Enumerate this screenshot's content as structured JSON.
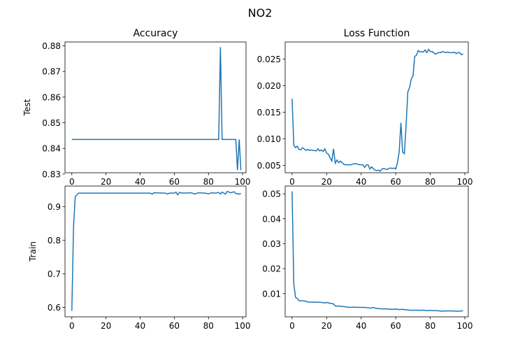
{
  "figure": {
    "suptitle": "NO2",
    "line_color": "#1f77b4",
    "column_titles": [
      "Accuracy",
      "Loss Function"
    ],
    "row_labels": [
      "Test",
      "Train"
    ]
  },
  "chart_data": [
    {
      "type": "line",
      "title": "Accuracy",
      "ylabel": "Test",
      "xlim": [
        -4,
        102
      ],
      "ylim": [
        0.8305,
        0.8815
      ],
      "xticks": [
        0,
        20,
        40,
        60,
        80,
        100
      ],
      "yticks": [
        0.83,
        0.84,
        0.85,
        0.86,
        0.87,
        0.88
      ],
      "ytick_labels": [
        "0.83",
        "0.84",
        "0.85",
        "0.86",
        "0.87",
        "0.88"
      ],
      "points": [
        [
          0,
          0.8435
        ],
        [
          86,
          0.8435
        ],
        [
          87,
          0.8795
        ],
        [
          88,
          0.8435
        ],
        [
          95,
          0.8435
        ],
        [
          96,
          0.8435
        ],
        [
          97,
          0.8315
        ],
        [
          98,
          0.8435
        ],
        [
          99,
          0.8315
        ]
      ]
    },
    {
      "type": "line",
      "title": "Loss Function",
      "ylabel": "",
      "xlim": [
        -4,
        102
      ],
      "ylim": [
        0.0036,
        0.0282
      ],
      "xticks": [
        0,
        20,
        40,
        60,
        80,
        100
      ],
      "yticks": [
        0.005,
        0.01,
        0.015,
        0.02,
        0.025
      ],
      "ytick_labels": [
        "0.005",
        "0.010",
        "0.015",
        "0.020",
        "0.025"
      ],
      "points": [
        [
          0,
          0.0175
        ],
        [
          1,
          0.0088
        ],
        [
          2,
          0.0083
        ],
        [
          3,
          0.0086
        ],
        [
          4,
          0.008
        ],
        [
          5,
          0.0079
        ],
        [
          6,
          0.0083
        ],
        [
          7,
          0.0081
        ],
        [
          8,
          0.0078
        ],
        [
          9,
          0.008
        ],
        [
          10,
          0.0078
        ],
        [
          11,
          0.0079
        ],
        [
          12,
          0.0078
        ],
        [
          13,
          0.0078
        ],
        [
          14,
          0.0077
        ],
        [
          15,
          0.0081
        ],
        [
          16,
          0.0077
        ],
        [
          17,
          0.0079
        ],
        [
          18,
          0.0076
        ],
        [
          19,
          0.0081
        ],
        [
          20,
          0.0073
        ],
        [
          21,
          0.0071
        ],
        [
          22,
          0.0064
        ],
        [
          23,
          0.0058
        ],
        [
          24,
          0.0081
        ],
        [
          25,
          0.0054
        ],
        [
          26,
          0.006
        ],
        [
          27,
          0.0055
        ],
        [
          28,
          0.0058
        ],
        [
          29,
          0.0055
        ],
        [
          30,
          0.0052
        ],
        [
          31,
          0.0051
        ],
        [
          32,
          0.0051
        ],
        [
          33,
          0.0051
        ],
        [
          34,
          0.0051
        ],
        [
          35,
          0.0052
        ],
        [
          36,
          0.0053
        ],
        [
          37,
          0.0053
        ],
        [
          38,
          0.0052
        ],
        [
          39,
          0.0051
        ],
        [
          40,
          0.0051
        ],
        [
          41,
          0.0051
        ],
        [
          42,
          0.0046
        ],
        [
          43,
          0.0051
        ],
        [
          44,
          0.0051
        ],
        [
          45,
          0.0043
        ],
        [
          46,
          0.0047
        ],
        [
          47,
          0.0044
        ],
        [
          48,
          0.0041
        ],
        [
          49,
          0.004
        ],
        [
          50,
          0.0041
        ],
        [
          51,
          0.0039
        ],
        [
          52,
          0.0043
        ],
        [
          53,
          0.0044
        ],
        [
          54,
          0.0043
        ],
        [
          55,
          0.0042
        ],
        [
          56,
          0.0044
        ],
        [
          57,
          0.0045
        ],
        [
          58,
          0.0044
        ],
        [
          59,
          0.0045
        ],
        [
          60,
          0.0043
        ],
        [
          61,
          0.0055
        ],
        [
          62,
          0.0075
        ],
        [
          63,
          0.013
        ],
        [
          64,
          0.0075
        ],
        [
          65,
          0.0072
        ],
        [
          66,
          0.0125
        ],
        [
          67,
          0.0188
        ],
        [
          68,
          0.0196
        ],
        [
          69,
          0.0212
        ],
        [
          70,
          0.0218
        ],
        [
          71,
          0.0255
        ],
        [
          72,
          0.0257
        ],
        [
          73,
          0.0266
        ],
        [
          74,
          0.0263
        ],
        [
          75,
          0.0264
        ],
        [
          76,
          0.0263
        ],
        [
          77,
          0.0267
        ],
        [
          78,
          0.0262
        ],
        [
          79,
          0.0268
        ],
        [
          80,
          0.0264
        ],
        [
          81,
          0.0264
        ],
        [
          82,
          0.0262
        ],
        [
          83,
          0.0259
        ],
        [
          84,
          0.0261
        ],
        [
          85,
          0.0262
        ],
        [
          86,
          0.0262
        ],
        [
          87,
          0.0264
        ],
        [
          88,
          0.0263
        ],
        [
          89,
          0.0262
        ],
        [
          90,
          0.0263
        ],
        [
          91,
          0.0262
        ],
        [
          92,
          0.0262
        ],
        [
          93,
          0.0262
        ],
        [
          94,
          0.0263
        ],
        [
          95,
          0.026
        ],
        [
          96,
          0.0262
        ],
        [
          97,
          0.0262
        ],
        [
          98,
          0.0258
        ],
        [
          99,
          0.026
        ]
      ]
    },
    {
      "type": "line",
      "title": "",
      "ylabel": "Train",
      "xlim": [
        -4,
        102
      ],
      "ylim": [
        0.572,
        0.961
      ],
      "xticks": [
        0,
        20,
        40,
        60,
        80,
        100
      ],
      "yticks": [
        0.6,
        0.7,
        0.8,
        0.9
      ],
      "ytick_labels": [
        "0.6",
        "0.7",
        "0.8",
        "0.9"
      ],
      "points": [
        [
          0,
          0.59
        ],
        [
          1,
          0.84
        ],
        [
          2,
          0.93
        ],
        [
          3,
          0.935
        ],
        [
          4,
          0.94
        ],
        [
          5,
          0.94
        ],
        [
          10,
          0.94
        ],
        [
          20,
          0.94
        ],
        [
          30,
          0.94
        ],
        [
          40,
          0.94
        ],
        [
          46,
          0.94
        ],
        [
          47,
          0.937
        ],
        [
          48,
          0.941
        ],
        [
          55,
          0.94
        ],
        [
          56,
          0.937
        ],
        [
          57,
          0.94
        ],
        [
          60,
          0.94
        ],
        [
          61,
          0.943
        ],
        [
          62,
          0.935
        ],
        [
          63,
          0.942
        ],
        [
          65,
          0.94
        ],
        [
          70,
          0.941
        ],
        [
          72,
          0.937
        ],
        [
          74,
          0.941
        ],
        [
          78,
          0.94
        ],
        [
          80,
          0.938
        ],
        [
          82,
          0.941
        ],
        [
          84,
          0.94
        ],
        [
          86,
          0.942
        ],
        [
          87,
          0.937
        ],
        [
          88,
          0.943
        ],
        [
          90,
          0.937
        ],
        [
          91,
          0.945
        ],
        [
          93,
          0.941
        ],
        [
          95,
          0.944
        ],
        [
          96,
          0.939
        ],
        [
          98,
          0.937
        ],
        [
          99,
          0.939
        ]
      ]
    },
    {
      "type": "line",
      "title": "",
      "ylabel": "",
      "xlim": [
        -4,
        102
      ],
      "ylim": [
        0.0007,
        0.0531
      ],
      "xticks": [
        0,
        20,
        40,
        60,
        80,
        100
      ],
      "yticks": [
        0.01,
        0.02,
        0.03,
        0.04,
        0.05
      ],
      "ytick_labels": [
        "0.01",
        "0.02",
        "0.03",
        "0.04",
        "0.05"
      ],
      "points": [
        [
          0,
          0.051
        ],
        [
          1,
          0.014
        ],
        [
          2,
          0.0085
        ],
        [
          3,
          0.008
        ],
        [
          4,
          0.0072
        ],
        [
          5,
          0.0071
        ],
        [
          6,
          0.0071
        ],
        [
          7,
          0.0071
        ],
        [
          8,
          0.0069
        ],
        [
          9,
          0.0067
        ],
        [
          10,
          0.0066
        ],
        [
          12,
          0.0066
        ],
        [
          14,
          0.0066
        ],
        [
          16,
          0.0065
        ],
        [
          18,
          0.0064
        ],
        [
          19,
          0.0062
        ],
        [
          20,
          0.0065
        ],
        [
          21,
          0.0063
        ],
        [
          22,
          0.0061
        ],
        [
          23,
          0.0061
        ],
        [
          24,
          0.0058
        ],
        [
          25,
          0.0051
        ],
        [
          26,
          0.0049
        ],
        [
          27,
          0.0051
        ],
        [
          28,
          0.0049
        ],
        [
          30,
          0.0048
        ],
        [
          32,
          0.0046
        ],
        [
          34,
          0.0045
        ],
        [
          36,
          0.0046
        ],
        [
          38,
          0.0045
        ],
        [
          40,
          0.0045
        ],
        [
          42,
          0.0045
        ],
        [
          44,
          0.0043
        ],
        [
          46,
          0.0042
        ],
        [
          47,
          0.0045
        ],
        [
          48,
          0.0042
        ],
        [
          50,
          0.004
        ],
        [
          52,
          0.0039
        ],
        [
          54,
          0.0039
        ],
        [
          56,
          0.0038
        ],
        [
          58,
          0.0037
        ],
        [
          60,
          0.0038
        ],
        [
          62,
          0.0036
        ],
        [
          64,
          0.0037
        ],
        [
          66,
          0.0035
        ],
        [
          68,
          0.0034
        ],
        [
          70,
          0.0033
        ],
        [
          72,
          0.0034
        ],
        [
          74,
          0.0033
        ],
        [
          76,
          0.0034
        ],
        [
          78,
          0.0032
        ],
        [
          80,
          0.0033
        ],
        [
          82,
          0.0032
        ],
        [
          84,
          0.0032
        ],
        [
          86,
          0.003
        ],
        [
          88,
          0.003
        ],
        [
          90,
          0.0031
        ],
        [
          92,
          0.0031
        ],
        [
          94,
          0.003
        ],
        [
          96,
          0.0029
        ],
        [
          98,
          0.0031
        ],
        [
          99,
          0.003
        ]
      ]
    }
  ]
}
